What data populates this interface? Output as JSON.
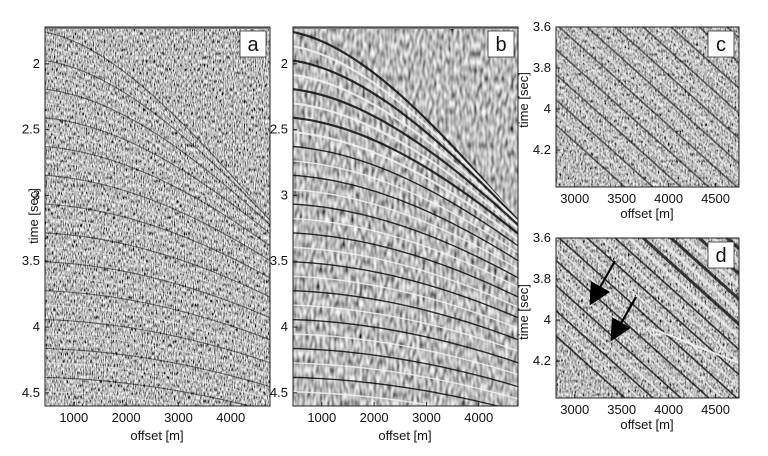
{
  "chart_data": [
    {
      "type": "heatmap",
      "label": "a",
      "xlabel": "offset [m]",
      "ylabel": "time [sec]",
      "xlim": [
        450,
        4750
      ],
      "ylim": [
        1.72,
        4.6
      ],
      "x_ticks": [
        "1000",
        "2000",
        "3000",
        "4000"
      ],
      "y_ticks": [
        "2",
        "2.5",
        "3",
        "3.5",
        "4",
        "4.5"
      ],
      "style": "noisy"
    },
    {
      "type": "heatmap",
      "label": "b",
      "xlabel": "offset [m]",
      "ylabel": "",
      "xlim": [
        450,
        4750
      ],
      "ylim": [
        1.72,
        4.6
      ],
      "x_ticks": [
        "1000",
        "2000",
        "3000",
        "4000"
      ],
      "y_ticks": [
        "2",
        "2.5",
        "3",
        "3.5",
        "4",
        "4.5"
      ],
      "style": "clean"
    },
    {
      "type": "heatmap",
      "label": "c",
      "xlabel": "offset [m]",
      "ylabel": "time [sec]",
      "xlim": [
        2800,
        4750
      ],
      "ylim": [
        3.6,
        4.38
      ],
      "x_ticks": [
        "3000",
        "3500",
        "4000",
        "4500"
      ],
      "y_ticks": [
        "3.6",
        "3.8",
        "4",
        "4.2"
      ],
      "style": "zoom"
    },
    {
      "type": "heatmap",
      "label": "d",
      "xlabel": "offset [m]",
      "ylabel": "time [sec]",
      "xlim": [
        2800,
        4750
      ],
      "ylim": [
        3.6,
        4.38
      ],
      "x_ticks": [
        "3000",
        "3500",
        "4000",
        "4500"
      ],
      "y_ticks": [
        "3.6",
        "3.8",
        "4",
        "4.2"
      ],
      "style": "zoom-arrows",
      "arrows": 2
    }
  ]
}
